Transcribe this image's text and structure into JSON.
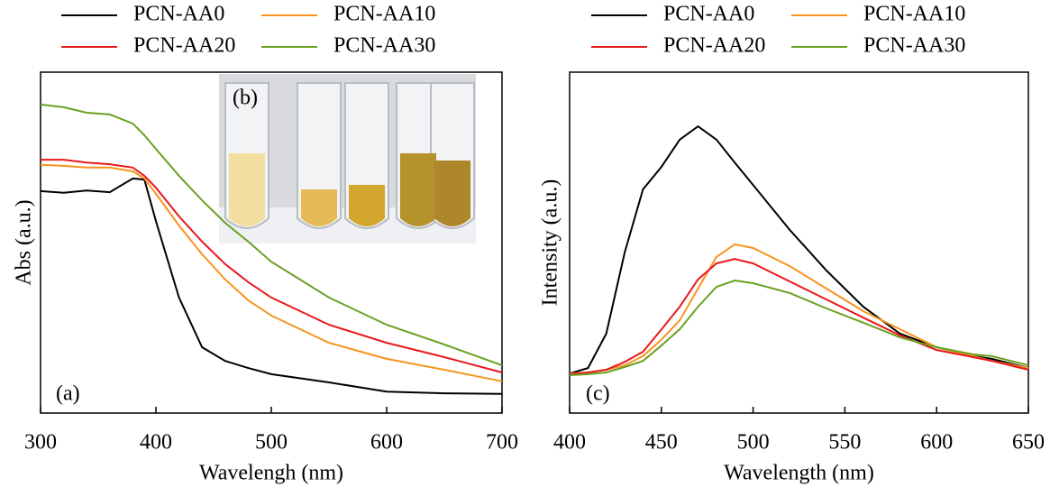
{
  "chart_data": [
    {
      "type": "line",
      "x_label": "Wavelengh (nm)",
      "y_label": "Abs (a.u.)",
      "annotations": [
        "(a)",
        "(b)"
      ],
      "x": [
        300,
        320,
        340,
        360,
        380,
        390,
        400,
        420,
        440,
        460,
        480,
        500,
        550,
        600,
        650,
        700
      ],
      "xlim": [
        300,
        700
      ],
      "xticks": [
        300,
        400,
        500,
        600,
        700
      ],
      "ylim": [
        0,
        1
      ],
      "series": [
        {
          "name": "PCN-AA0",
          "color": "#000000",
          "values": [
            0.651,
            0.646,
            0.653,
            0.648,
            0.688,
            0.685,
            0.563,
            0.339,
            0.193,
            0.153,
            0.132,
            0.114,
            0.09,
            0.063,
            0.058,
            0.056
          ]
        },
        {
          "name": "PCN-AA10",
          "color": "#f7941d",
          "values": [
            0.728,
            0.725,
            0.72,
            0.72,
            0.709,
            0.688,
            0.643,
            0.55,
            0.466,
            0.392,
            0.331,
            0.286,
            0.206,
            0.159,
            0.127,
            0.093
          ]
        },
        {
          "name": "PCN-AA20",
          "color": "#e8191c",
          "values": [
            0.743,
            0.743,
            0.735,
            0.73,
            0.72,
            0.696,
            0.661,
            0.577,
            0.503,
            0.437,
            0.384,
            0.339,
            0.259,
            0.206,
            0.164,
            0.119
          ]
        },
        {
          "name": "PCN-AA30",
          "color": "#6aa121",
          "values": [
            0.905,
            0.897,
            0.881,
            0.876,
            0.849,
            0.815,
            0.775,
            0.696,
            0.624,
            0.558,
            0.503,
            0.444,
            0.339,
            0.259,
            0.201,
            0.14
          ]
        }
      ]
    },
    {
      "type": "line",
      "x_label": "Wavelength (nm)",
      "y_label": "Intensity (a.u.)",
      "annotations": [
        "(c)"
      ],
      "x": [
        400,
        410,
        420,
        430,
        440,
        450,
        460,
        470,
        480,
        490,
        500,
        520,
        540,
        560,
        580,
        600,
        620,
        630,
        650
      ],
      "xlim": [
        400,
        650
      ],
      "xticks": [
        400,
        450,
        500,
        550,
        600,
        650
      ],
      "ylim": [
        0,
        1
      ],
      "series": [
        {
          "name": "PCN-AA0",
          "color": "#000000",
          "values": [
            0.116,
            0.132,
            0.233,
            0.471,
            0.656,
            0.722,
            0.802,
            0.841,
            0.802,
            0.735,
            0.669,
            0.537,
            0.418,
            0.312,
            0.233,
            0.193,
            0.167,
            0.159,
            0.132
          ]
        },
        {
          "name": "PCN-AA10",
          "color": "#f7941d",
          "values": [
            0.116,
            0.119,
            0.127,
            0.14,
            0.167,
            0.215,
            0.272,
            0.365,
            0.458,
            0.495,
            0.484,
            0.431,
            0.365,
            0.299,
            0.246,
            0.193,
            0.167,
            0.153,
            0.132
          ]
        },
        {
          "name": "PCN-AA20",
          "color": "#e8191c",
          "values": [
            0.114,
            0.119,
            0.127,
            0.15,
            0.18,
            0.245,
            0.312,
            0.392,
            0.439,
            0.452,
            0.439,
            0.386,
            0.333,
            0.28,
            0.228,
            0.185,
            0.164,
            0.153,
            0.127
          ]
        },
        {
          "name": "PCN-AA30",
          "color": "#6aa121",
          "values": [
            0.111,
            0.114,
            0.119,
            0.135,
            0.153,
            0.198,
            0.246,
            0.312,
            0.37,
            0.389,
            0.381,
            0.352,
            0.307,
            0.265,
            0.222,
            0.193,
            0.172,
            0.167,
            0.14
          ]
        }
      ]
    }
  ]
}
